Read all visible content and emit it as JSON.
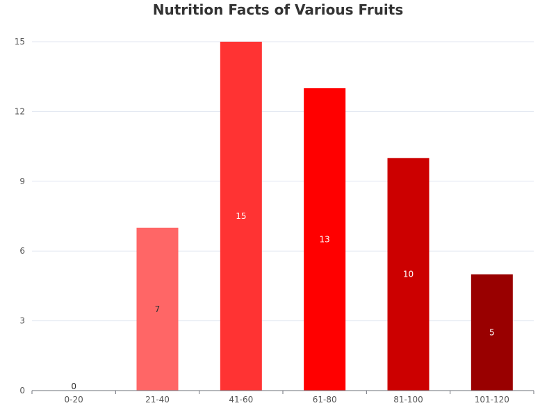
{
  "chart_data": {
    "type": "bar",
    "title": "Nutrition Facts of Various Fruits",
    "categories": [
      "0-20",
      "21-40",
      "41-60",
      "61-80",
      "81-100",
      "101-120"
    ],
    "values": [
      0,
      7,
      15,
      13,
      10,
      5
    ],
    "bar_colors": [
      "#ffcccc",
      "#ff6666",
      "#ff3333",
      "#ff0000",
      "#cc0000",
      "#990000"
    ],
    "label_colors": [
      "#333333",
      "#333333",
      "#ffffff",
      "#ffffff",
      "#ffffff",
      "#ffffff"
    ],
    "ylim": [
      0,
      15
    ],
    "yticks": [
      0,
      3,
      6,
      9,
      12,
      15
    ],
    "xlabel": "",
    "ylabel": "",
    "grid": true,
    "legend": "none"
  }
}
